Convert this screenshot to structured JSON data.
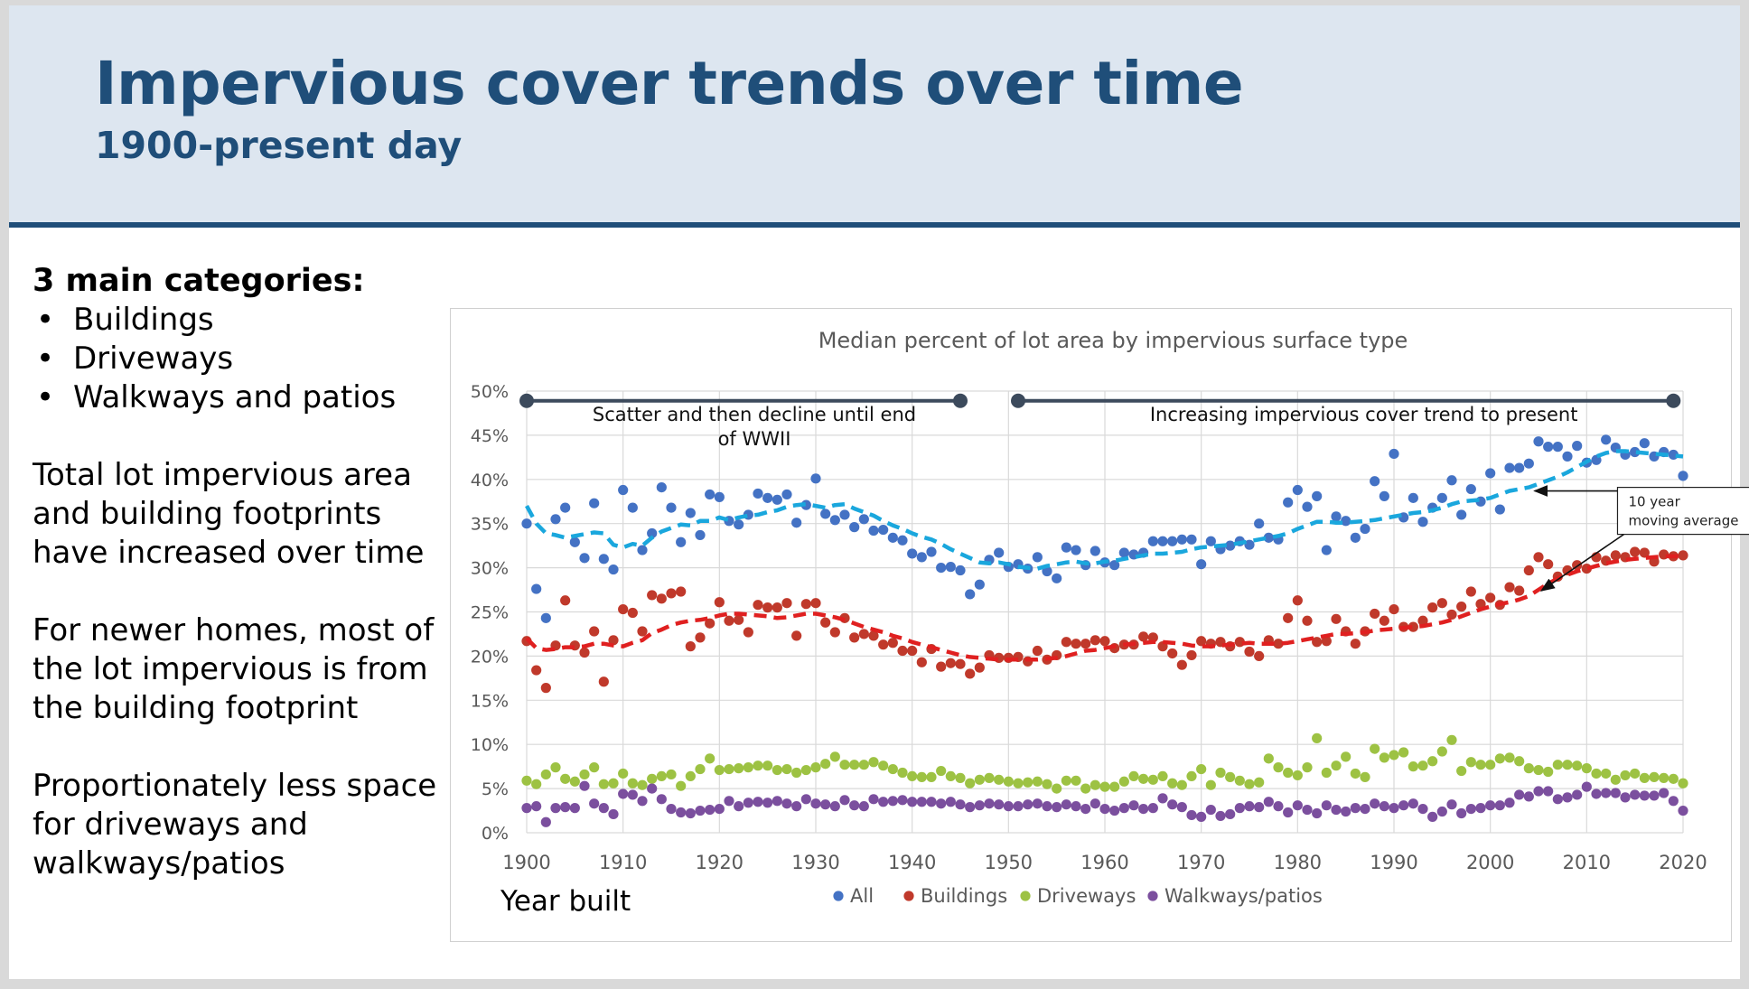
{
  "slide": {
    "title": "Impervious cover trends over time",
    "subtitle": "1900-present day",
    "categories_heading": "3 main categories:",
    "bullets": [
      "Buildings",
      "Driveways",
      "Walkways and patios"
    ],
    "paragraphs": [
      "Total lot impervious area and building footprints have increased over time",
      "For newer homes, most of the lot impervious is from the building footprint",
      "Proportionately less space for driveways and walkways/patios"
    ]
  },
  "colors": {
    "title": "#1f4e79",
    "header_bg": "#dde6f0",
    "all": "#4472c4",
    "buildings": "#c0392b",
    "driveways": "#9dc243",
    "walkways": "#7b4f9e",
    "all_avg": "#1aa7dd",
    "buildings_avg": "#e02020",
    "bracket": "#3c4a5c"
  },
  "chart_data": {
    "type": "scatter",
    "title": "Median percent of lot area by impervious surface type",
    "xlabel": "Year built",
    "ylabel": "",
    "xlim": [
      1900,
      2020
    ],
    "ylim": [
      0,
      50
    ],
    "x_ticks": [
      "1900",
      "1910",
      "1920",
      "1930",
      "1940",
      "1950",
      "1960",
      "1970",
      "1980",
      "1990",
      "2000",
      "2010",
      "2020"
    ],
    "y_ticks": [
      "0%",
      "5%",
      "10%",
      "15%",
      "20%",
      "25%",
      "30%",
      "35%",
      "40%",
      "45%",
      "50%"
    ],
    "grid": true,
    "legend_position": "bottom",
    "legend": [
      "All",
      "Buildings",
      "Driveways",
      "Walkways/patios"
    ],
    "annotations": {
      "period1": "Scatter and then decline until end of WWII",
      "period1_years": [
        1900,
        1945
      ],
      "period2": "Increasing impervious cover trend to present",
      "period2_years": [
        1951,
        2019
      ],
      "moving_avg_label": "10 year moving average"
    },
    "x": [
      1900,
      1901,
      1902,
      1903,
      1904,
      1905,
      1906,
      1907,
      1908,
      1909,
      1910,
      1911,
      1912,
      1913,
      1914,
      1915,
      1916,
      1917,
      1918,
      1919,
      1920,
      1921,
      1922,
      1923,
      1924,
      1925,
      1926,
      1927,
      1928,
      1929,
      1930,
      1931,
      1932,
      1933,
      1934,
      1935,
      1936,
      1937,
      1938,
      1939,
      1940,
      1941,
      1942,
      1943,
      1944,
      1945,
      1946,
      1947,
      1948,
      1949,
      1950,
      1951,
      1952,
      1953,
      1954,
      1955,
      1956,
      1957,
      1958,
      1959,
      1960,
      1961,
      1962,
      1963,
      1964,
      1965,
      1966,
      1967,
      1968,
      1969,
      1970,
      1971,
      1972,
      1973,
      1974,
      1975,
      1976,
      1977,
      1978,
      1979,
      1980,
      1981,
      1982,
      1983,
      1984,
      1985,
      1986,
      1987,
      1988,
      1989,
      1990,
      1991,
      1992,
      1993,
      1994,
      1995,
      1996,
      1997,
      1998,
      1999,
      2000,
      2001,
      2002,
      2003,
      2004,
      2005,
      2006,
      2007,
      2008,
      2009,
      2010,
      2011,
      2012,
      2013,
      2014,
      2015,
      2016,
      2017,
      2018,
      2019,
      2020
    ],
    "series": [
      {
        "name": "All",
        "values": [
          35.0,
          27.6,
          24.3,
          35.5,
          36.8,
          32.9,
          31.1,
          37.3,
          31.0,
          29.8,
          38.8,
          36.8,
          32.0,
          33.9,
          39.1,
          36.8,
          32.9,
          36.2,
          33.7,
          38.3,
          38.0,
          35.3,
          34.9,
          36.0,
          38.4,
          37.9,
          37.7,
          38.3,
          35.1,
          37.1,
          40.1,
          36.1,
          35.4,
          36.0,
          34.6,
          35.5,
          34.2,
          34.3,
          33.4,
          33.1,
          31.6,
          31.2,
          31.8,
          30.0,
          30.1,
          29.7,
          27.0,
          28.1,
          30.9,
          31.7,
          30.1,
          30.4,
          29.9,
          31.2,
          29.6,
          28.8,
          32.3,
          32.0,
          30.3,
          31.9,
          30.6,
          30.3,
          31.7,
          31.5,
          31.7,
          33.0,
          33.0,
          33.0,
          33.2,
          33.2,
          30.4,
          33.0,
          32.1,
          32.5,
          33.0,
          32.6,
          35.0,
          33.4,
          33.2,
          37.4,
          38.8,
          36.9,
          38.1,
          32.0,
          35.8,
          35.3,
          33.4,
          34.4,
          39.8,
          38.1,
          42.9,
          35.7,
          37.9,
          35.2,
          36.8,
          37.9,
          39.9,
          36.0,
          38.9,
          37.5,
          40.7,
          36.6,
          41.3,
          41.3,
          41.8,
          44.3,
          43.7,
          43.7,
          42.6,
          43.8,
          41.9,
          42.2,
          44.5,
          43.6,
          42.8,
          43.1,
          44.1,
          42.6,
          43.1,
          42.8,
          40.4
        ]
      },
      {
        "name": "Buildings",
        "values": [
          21.7,
          18.4,
          16.4,
          21.2,
          26.3,
          21.2,
          20.4,
          22.8,
          17.1,
          21.8,
          25.3,
          24.9,
          22.8,
          26.9,
          26.5,
          27.1,
          27.3,
          21.1,
          22.1,
          23.7,
          26.1,
          24.0,
          24.1,
          22.7,
          25.8,
          25.5,
          25.5,
          26.0,
          22.3,
          25.9,
          26.0,
          23.8,
          22.7,
          24.3,
          22.1,
          22.5,
          22.3,
          21.3,
          21.5,
          20.6,
          20.6,
          19.3,
          20.8,
          18.8,
          19.2,
          19.1,
          18.0,
          18.7,
          20.1,
          19.8,
          19.8,
          19.9,
          19.4,
          20.6,
          19.6,
          20.1,
          21.6,
          21.4,
          21.4,
          21.8,
          21.7,
          20.9,
          21.3,
          21.3,
          22.2,
          22.1,
          21.1,
          20.3,
          19.0,
          20.1,
          21.7,
          21.4,
          21.6,
          21.1,
          21.6,
          20.5,
          20.0,
          21.8,
          21.4,
          24.3,
          26.3,
          24.0,
          21.6,
          21.7,
          24.2,
          22.8,
          21.4,
          22.8,
          24.8,
          24.0,
          25.3,
          23.3,
          23.3,
          24.0,
          25.5,
          26.0,
          24.7,
          25.6,
          27.3,
          25.9,
          26.6,
          25.8,
          27.8,
          27.4,
          29.7,
          31.2,
          30.4,
          29.0,
          29.7,
          30.3,
          29.9,
          31.2,
          30.8,
          31.4,
          31.2,
          31.8,
          31.7,
          30.7,
          31.5,
          31.3,
          31.4
        ]
      },
      {
        "name": "Driveways",
        "values": [
          5.9,
          5.5,
          6.6,
          7.4,
          6.1,
          5.8,
          6.6,
          7.4,
          5.5,
          5.6,
          6.7,
          5.6,
          5.4,
          6.1,
          6.4,
          6.6,
          5.3,
          6.4,
          7.2,
          8.4,
          7.1,
          7.2,
          7.3,
          7.4,
          7.6,
          7.6,
          7.1,
          7.2,
          6.8,
          7.1,
          7.4,
          7.8,
          8.6,
          7.7,
          7.7,
          7.7,
          8.0,
          7.6,
          7.2,
          6.8,
          6.4,
          6.3,
          6.3,
          7.0,
          6.4,
          6.2,
          5.6,
          6.0,
          6.2,
          6.0,
          5.8,
          5.6,
          5.7,
          5.8,
          5.5,
          5.0,
          5.9,
          5.9,
          5.0,
          5.4,
          5.2,
          5.2,
          5.8,
          6.4,
          6.1,
          6.0,
          6.4,
          5.6,
          5.4,
          6.4,
          7.2,
          5.4,
          6.8,
          6.3,
          5.9,
          5.5,
          5.7,
          8.4,
          7.4,
          6.8,
          6.5,
          7.4,
          10.7,
          6.8,
          7.6,
          8.6,
          6.7,
          6.3,
          9.5,
          8.5,
          8.8,
          9.1,
          7.5,
          7.6,
          8.1,
          9.2,
          10.5,
          7.0,
          8.0,
          7.7,
          7.7,
          8.4,
          8.5,
          8.1,
          7.3,
          7.1,
          6.9,
          7.7,
          7.7,
          7.6,
          7.3,
          6.7,
          6.7,
          6.0,
          6.5,
          6.7,
          6.2,
          6.3,
          6.2,
          6.1,
          5.6
        ]
      },
      {
        "name": "Walkways/patios",
        "values": [
          2.8,
          3.0,
          1.2,
          2.8,
          2.9,
          2.8,
          5.3,
          3.3,
          2.8,
          2.1,
          4.4,
          4.3,
          3.6,
          5.0,
          3.8,
          2.7,
          2.3,
          2.2,
          2.5,
          2.6,
          2.7,
          3.6,
          3.0,
          3.4,
          3.5,
          3.4,
          3.6,
          3.3,
          3.0,
          3.8,
          3.3,
          3.2,
          3.0,
          3.7,
          3.1,
          3.0,
          3.8,
          3.5,
          3.6,
          3.7,
          3.5,
          3.5,
          3.5,
          3.3,
          3.5,
          3.2,
          2.9,
          3.1,
          3.3,
          3.2,
          3.0,
          3.0,
          3.2,
          3.3,
          3.0,
          2.9,
          3.2,
          3.0,
          2.7,
          3.3,
          2.7,
          2.5,
          2.8,
          3.1,
          2.7,
          2.8,
          3.9,
          3.2,
          2.9,
          2.0,
          1.8,
          2.6,
          1.9,
          2.1,
          2.8,
          3.0,
          2.9,
          3.5,
          3.0,
          2.3,
          3.1,
          2.6,
          2.2,
          3.1,
          2.6,
          2.4,
          2.8,
          2.7,
          3.3,
          3.0,
          2.8,
          3.1,
          3.3,
          2.7,
          1.8,
          2.4,
          3.2,
          2.2,
          2.7,
          2.8,
          3.1,
          3.1,
          3.4,
          4.3,
          4.1,
          4.7,
          4.7,
          3.8,
          4.0,
          4.3,
          5.2,
          4.4,
          4.5,
          4.5,
          4.0,
          4.3,
          4.2,
          4.2,
          4.5,
          3.6,
          2.5
        ]
      },
      {
        "name": "All (10 year moving average)",
        "values": [
          37.0,
          35.0,
          33.9,
          33.7,
          33.4,
          33.6,
          33.8,
          34.0,
          33.9,
          32.6,
          32.3,
          32.7,
          32.5,
          33.4,
          34.1,
          34.5,
          34.9,
          34.8,
          35.3,
          35.3,
          35.7,
          35.4,
          35.7,
          35.9,
          36.0,
          36.3,
          36.5,
          36.9,
          37.1,
          37.2,
          37.0,
          36.8,
          37.1,
          37.2,
          36.7,
          36.3,
          35.9,
          35.3,
          34.8,
          34.4,
          33.9,
          33.5,
          33.2,
          32.7,
          32.1,
          31.6,
          31.1,
          30.6,
          30.5,
          30.6,
          30.4,
          30.1,
          30.0,
          29.9,
          30.2,
          30.4,
          30.6,
          30.7,
          30.5,
          30.5,
          30.7,
          30.8,
          31.0,
          31.2,
          31.4,
          31.6,
          31.6,
          31.7,
          31.8,
          32.1,
          32.3,
          32.4,
          32.5,
          32.6,
          32.8,
          33.0,
          33.2,
          33.4,
          33.6,
          33.9,
          34.4,
          34.8,
          35.2,
          35.2,
          35.1,
          35.1,
          35.2,
          35.3,
          35.4,
          35.6,
          35.8,
          36.0,
          36.2,
          36.3,
          36.5,
          36.8,
          37.2,
          37.5,
          37.6,
          37.7,
          37.9,
          38.3,
          38.7,
          38.9,
          39.1,
          39.5,
          39.9,
          40.3,
          40.8,
          41.4,
          42.0,
          42.6,
          43.0,
          43.2,
          43.2,
          43.1,
          43.0,
          42.9,
          42.8,
          42.7,
          42.6
        ]
      },
      {
        "name": "Buildings (10 year moving average)",
        "values": [
          22.0,
          20.9,
          20.7,
          20.8,
          21.0,
          21.0,
          21.1,
          21.4,
          21.4,
          21.2,
          21.1,
          21.5,
          21.8,
          22.6,
          23.0,
          23.5,
          23.8,
          24.0,
          24.1,
          24.3,
          24.6,
          24.8,
          24.8,
          24.7,
          24.6,
          24.5,
          24.3,
          24.4,
          24.6,
          24.8,
          24.8,
          24.6,
          24.4,
          24.1,
          23.7,
          23.3,
          23.0,
          22.7,
          22.3,
          22.0,
          21.6,
          21.3,
          21.0,
          20.7,
          20.4,
          20.1,
          19.9,
          19.8,
          19.7,
          19.6,
          19.6,
          19.6,
          19.6,
          19.6,
          19.7,
          19.8,
          20.0,
          20.3,
          20.6,
          20.7,
          20.9,
          21.1,
          21.3,
          21.4,
          21.5,
          21.6,
          21.6,
          21.5,
          21.4,
          21.2,
          21.1,
          21.1,
          21.2,
          21.3,
          21.4,
          21.5,
          21.4,
          21.4,
          21.4,
          21.5,
          21.7,
          21.9,
          22.1,
          22.3,
          22.5,
          22.5,
          22.6,
          22.7,
          22.9,
          23.0,
          23.1,
          23.2,
          23.3,
          23.4,
          23.6,
          23.8,
          24.1,
          24.5,
          24.9,
          25.3,
          25.6,
          25.9,
          26.1,
          26.4,
          26.8,
          27.5,
          28.2,
          28.8,
          29.2,
          29.6,
          29.9,
          30.2,
          30.5,
          30.7,
          30.9,
          31.0,
          31.1,
          31.2,
          31.3,
          31.3,
          31.3
        ]
      }
    ]
  }
}
